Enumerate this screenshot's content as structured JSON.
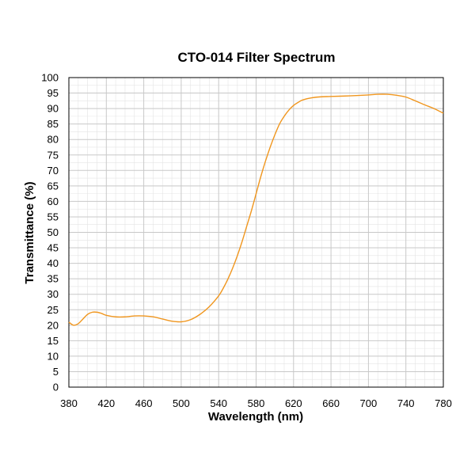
{
  "chart_data": {
    "type": "line",
    "title": "CTO-014 Filter Spectrum",
    "xlabel": "Wavelength (nm)",
    "ylabel": "Transmittance (%)",
    "xlim": [
      380,
      780
    ],
    "ylim": [
      0,
      100
    ],
    "xticks": [
      380,
      420,
      460,
      500,
      540,
      580,
      620,
      660,
      700,
      740,
      780
    ],
    "yticks": [
      0,
      5,
      10,
      15,
      20,
      25,
      30,
      35,
      40,
      45,
      50,
      55,
      60,
      65,
      70,
      75,
      80,
      85,
      90,
      95,
      100
    ],
    "grid": true,
    "line_color": "#f0961e",
    "series": [
      {
        "x": [
          380,
          385,
          390,
          395,
          400,
          405,
          410,
          415,
          420,
          430,
          440,
          450,
          460,
          470,
          480,
          490,
          500,
          510,
          520,
          530,
          540,
          545,
          550,
          555,
          560,
          565,
          570,
          575,
          580,
          585,
          590,
          595,
          600,
          605,
          610,
          615,
          620,
          625,
          630,
          640,
          650,
          660,
          680,
          700,
          710,
          720,
          730,
          740,
          750,
          760,
          770,
          780
        ],
        "y": [
          21,
          20,
          20.5,
          22,
          23.5,
          24.2,
          24.2,
          23.8,
          23.2,
          22.7,
          22.7,
          23,
          23,
          22.7,
          22,
          21.3,
          21.1,
          21.8,
          23.5,
          26,
          29.5,
          32,
          35,
          38.5,
          42.5,
          47,
          52,
          57,
          62.5,
          68,
          73,
          77.5,
          81.5,
          85,
          87.5,
          89.5,
          91,
          92,
          92.8,
          93.5,
          93.8,
          93.9,
          94.1,
          94.4,
          94.6,
          94.6,
          94.3,
          93.7,
          92.5,
          91.2,
          90,
          88.5
        ]
      }
    ]
  }
}
